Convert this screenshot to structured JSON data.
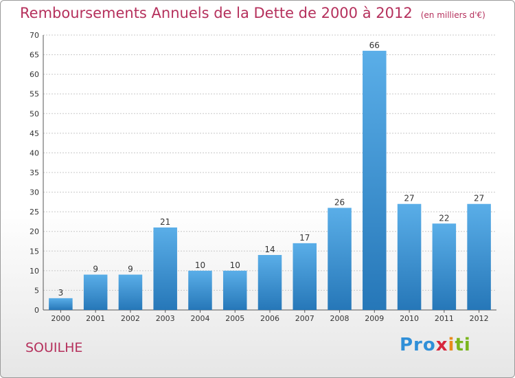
{
  "header": {
    "title": "Remboursements Annuels de la Dette de 2000 à 2012",
    "unit": "(en milliers d'€)"
  },
  "footer": {
    "commune": "SOUILHE",
    "logo_text": "Proxiti"
  },
  "colors": {
    "title": "#b5305c",
    "bar_top": "#5aaee8",
    "bar_bottom": "#2677b8",
    "grid": "#c8c8c8"
  },
  "chart_data": {
    "type": "bar",
    "title": "Remboursements Annuels de la Dette de 2000 à 2012",
    "subtitle": "(en milliers d'€)",
    "categories": [
      "2000",
      "2001",
      "2002",
      "2003",
      "2004",
      "2005",
      "2006",
      "2007",
      "2008",
      "2009",
      "2010",
      "2011",
      "2012"
    ],
    "values": [
      3,
      9,
      9,
      21,
      10,
      10,
      14,
      17,
      26,
      66,
      27,
      22,
      27
    ],
    "ylim": [
      0,
      70
    ],
    "yticks": [
      0,
      5,
      10,
      15,
      20,
      25,
      30,
      35,
      40,
      45,
      50,
      55,
      60,
      65,
      70
    ],
    "grid": true,
    "data_labels": true
  }
}
